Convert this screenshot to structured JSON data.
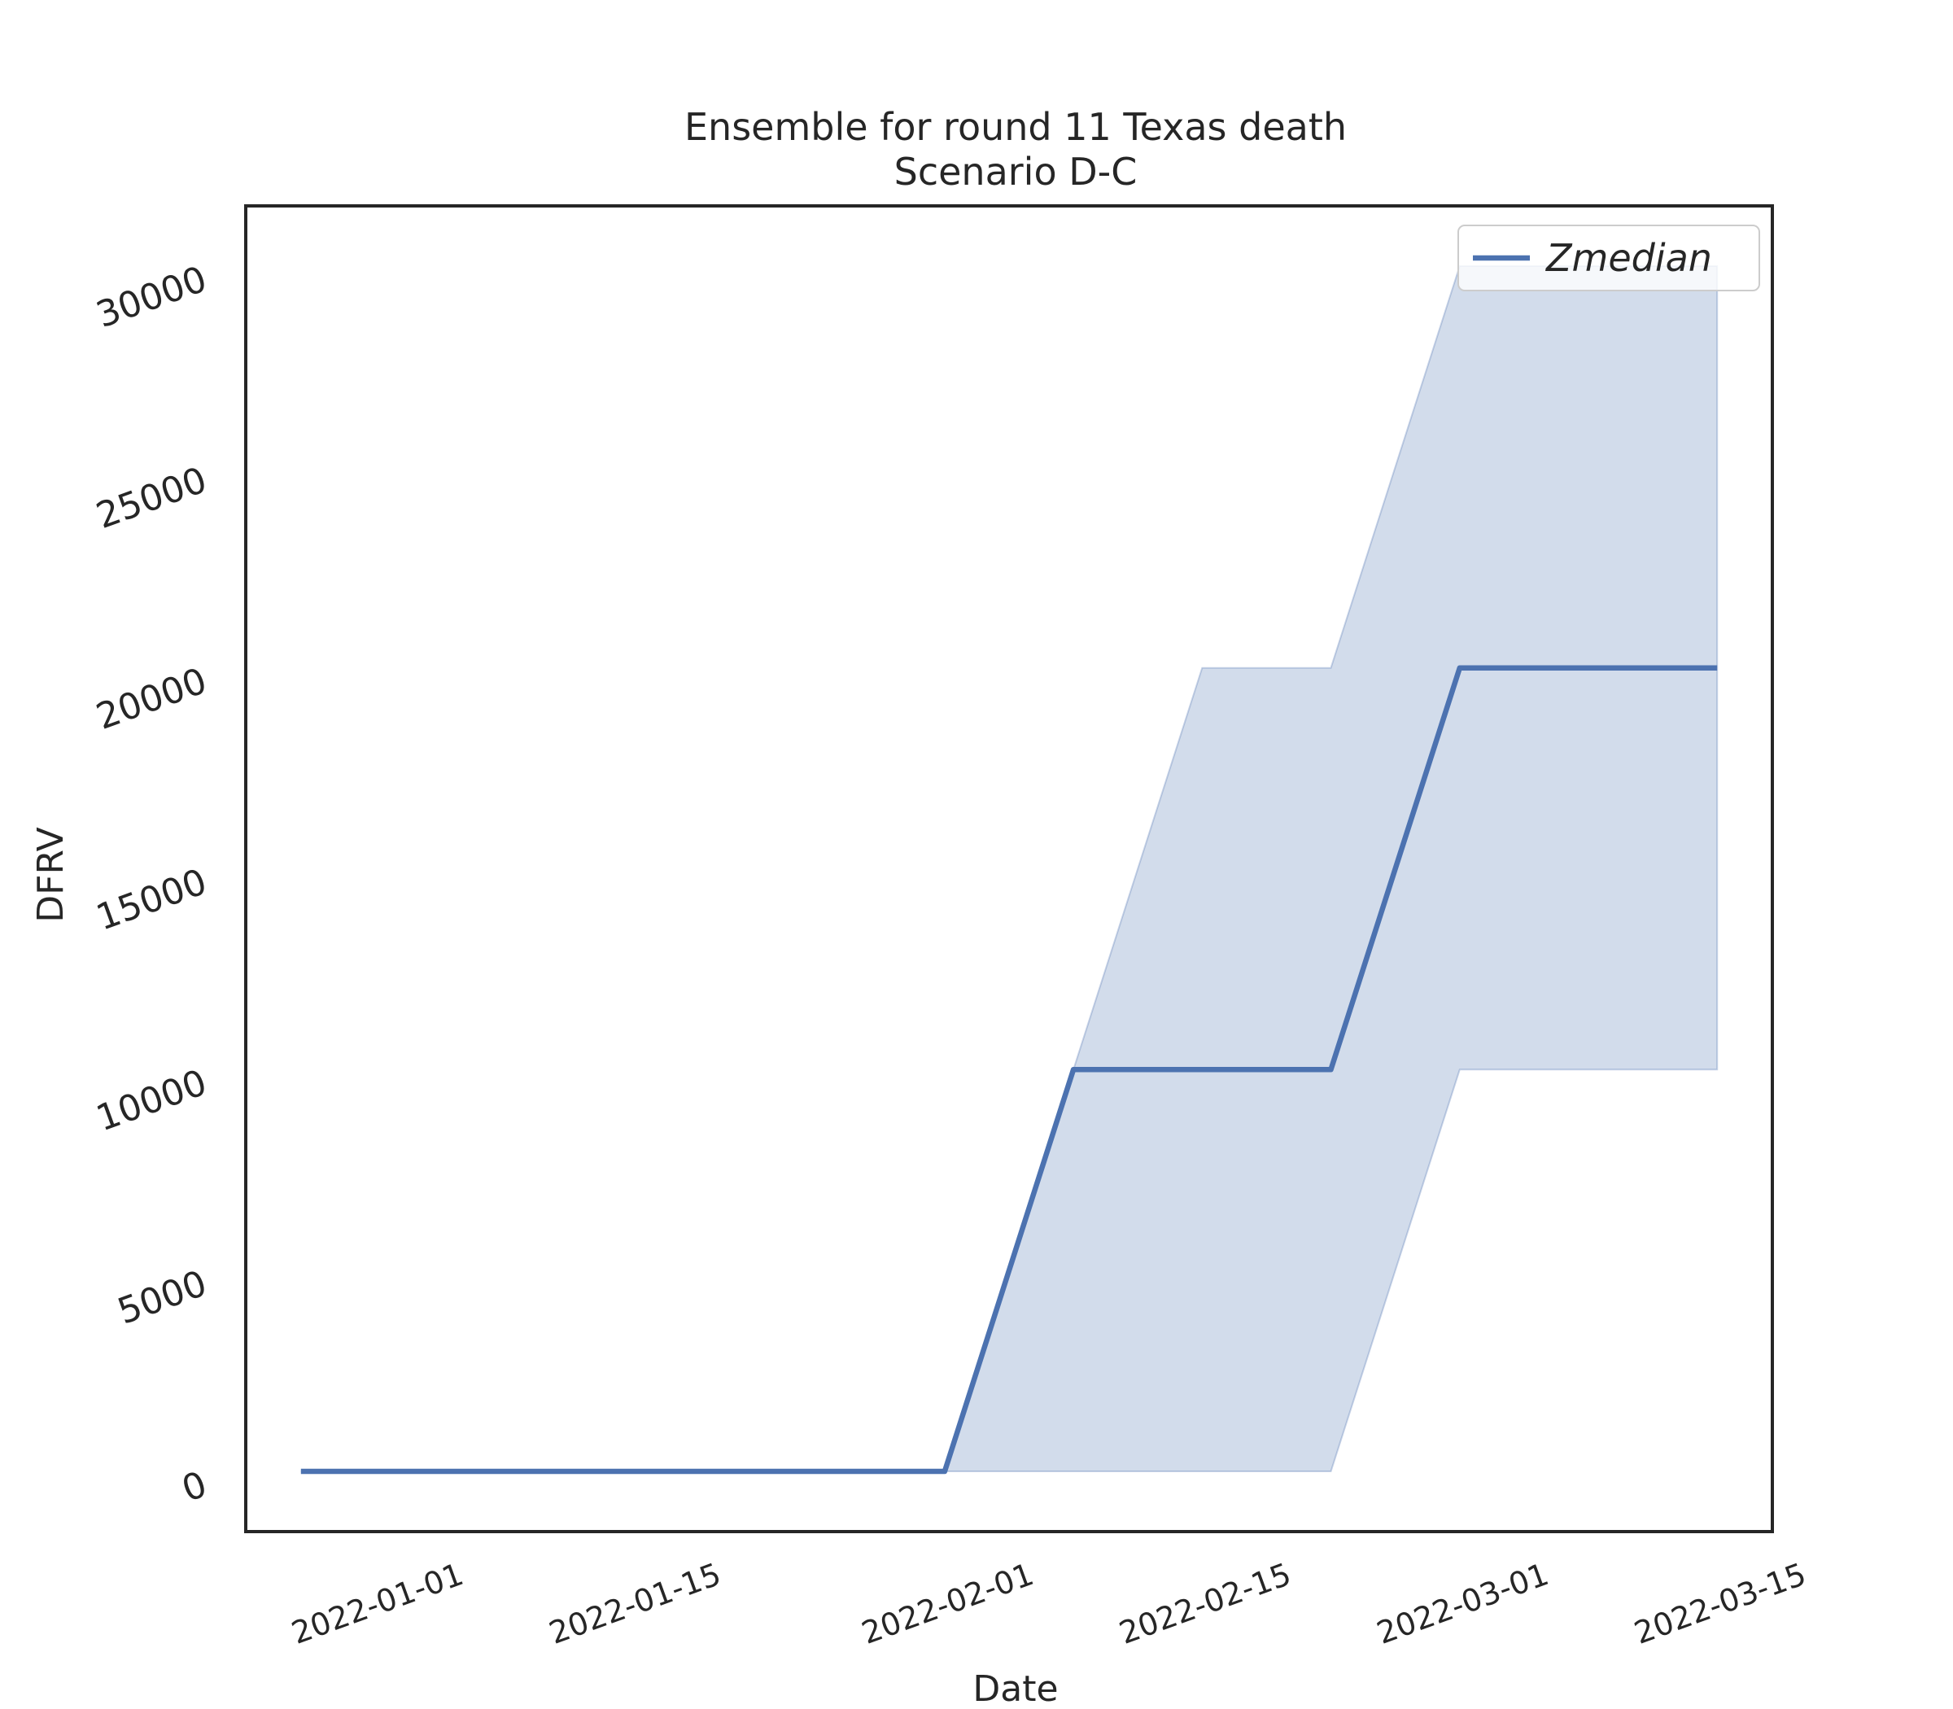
{
  "chart_data": {
    "type": "line",
    "title": "Ensemble for round 11 Texas death",
    "subtitle": "Scenario D-C",
    "xlabel": "Date",
    "ylabel": "DFRV",
    "x": [
      "2021-12-25",
      "2022-01-01",
      "2022-01-08",
      "2022-01-15",
      "2022-01-22",
      "2022-01-29",
      "2022-02-05",
      "2022-02-12",
      "2022-02-19",
      "2022-02-26",
      "2022-03-05",
      "2022-03-12"
    ],
    "series": [
      {
        "name": "Zmedian",
        "values": [
          0,
          0,
          0,
          0,
          0,
          0,
          10000,
          10000,
          10000,
          20000,
          20000,
          20000
        ],
        "lower": [
          0,
          0,
          0,
          0,
          0,
          0,
          0,
          0,
          0,
          10000,
          10000,
          10000
        ],
        "upper": [
          0,
          0,
          0,
          0,
          0,
          0,
          10000,
          20000,
          20000,
          30000,
          30000,
          30000
        ]
      }
    ],
    "xlim": [
      "2021-12-22",
      "2022-03-15"
    ],
    "ylim": [
      -1500,
      31500
    ],
    "xticks": [
      "2022-01-01",
      "2022-01-15",
      "2022-02-01",
      "2022-02-15",
      "2022-03-01",
      "2022-03-15"
    ],
    "yticks": [
      0,
      5000,
      10000,
      15000,
      20000,
      25000,
      30000
    ],
    "grid": false,
    "legend": "top-right",
    "colors": {
      "line": "#4c72b0",
      "band": "#4c72b0",
      "frame": "#262626"
    }
  }
}
